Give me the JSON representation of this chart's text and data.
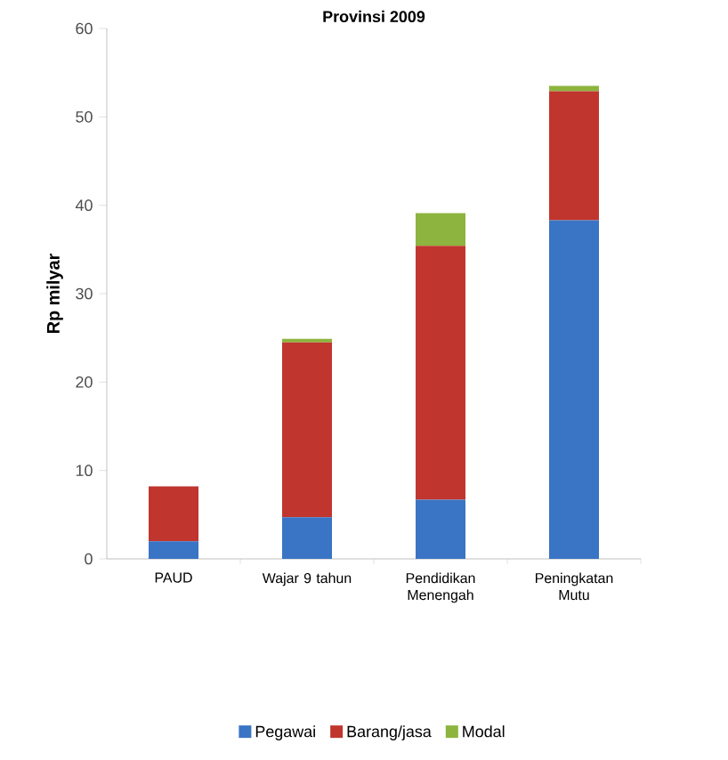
{
  "chart_data": {
    "type": "bar",
    "stacked": true,
    "title": "Provinsi 2009",
    "ylabel": "Rp milyar",
    "categories": [
      "PAUD",
      "Wajar 9 tahun",
      "Pendidikan Menengah",
      "Peningkatan Mutu"
    ],
    "series": [
      {
        "name": "Pegawai",
        "color": "#3a74c4",
        "values": [
          2.0,
          4.7,
          6.7,
          38.3
        ]
      },
      {
        "name": "Barang/jasa",
        "color": "#c0362f",
        "values": [
          6.2,
          19.8,
          28.7,
          14.6
        ]
      },
      {
        "name": "Modal",
        "color": "#8db43e",
        "values": [
          0,
          0.4,
          3.7,
          0.6
        ]
      }
    ],
    "ylim": [
      0,
      60
    ],
    "yticks": [
      0,
      10,
      20,
      30,
      40,
      50,
      60
    ],
    "grid": false,
    "legend": "bottom"
  }
}
